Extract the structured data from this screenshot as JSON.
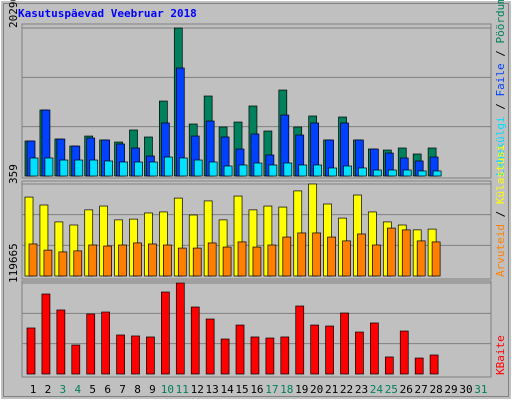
{
  "title": "Kasutuspäevad Veebruar 2018",
  "legend_separator": " / ",
  "chart_data": [
    {
      "type": "bar",
      "ylim": [
        0,
        20296
      ],
      "yticks": [
        20296
      ],
      "series": [
        {
          "name": "Pöördumisi",
          "color": "#00805c",
          "values": [
            4800,
            9050,
            5070,
            4110,
            5480,
            4940,
            4660,
            6310,
            5350,
            10280,
            20296,
            7130,
            10970,
            6720,
            7400,
            9600,
            6170,
            11790,
            6720,
            8230,
            4940,
            8090,
            4940,
            3700,
            3560,
            3840,
            3020,
            3840,
            null,
            null,
            null
          ]
        },
        {
          "name": "Faile",
          "color": "#0040ff",
          "values": [
            4800,
            9050,
            5070,
            4110,
            5210,
            4940,
            4390,
            3840,
            2740,
            7270,
            14810,
            5480,
            7540,
            5350,
            3700,
            5760,
            2880,
            8360,
            5620,
            7270,
            4940,
            7270,
            4940,
            3700,
            3150,
            2470,
            2060,
            2600,
            null,
            null,
            null
          ]
        },
        {
          "name": "Lehekülgi",
          "color": "#00e0ff",
          "values": [
            2470,
            2470,
            2190,
            2190,
            2190,
            2060,
            1920,
            1920,
            1920,
            2600,
            2470,
            2190,
            1920,
            1370,
            1510,
            1780,
            1510,
            1780,
            1510,
            1510,
            1100,
            1370,
            1100,
            820,
            820,
            820,
            690,
            690,
            null,
            null,
            null
          ]
        }
      ]
    },
    {
      "type": "bar",
      "ylim": [
        0,
        359
      ],
      "yticks": [
        359
      ],
      "series": [
        {
          "name": "Külastusi",
          "color": "#ffff00",
          "values": [
            308,
            277,
            211,
            199,
            258,
            273,
            219,
            222,
            246,
            250,
            304,
            238,
            293,
            219,
            312,
            258,
            273,
            269,
            332,
            359,
            281,
            226,
            316,
            250,
            211,
            199,
            180,
            183,
            null,
            null,
            null
          ]
        },
        {
          "name": "Arvuteid",
          "color": "#ff8000",
          "values": [
            125,
            101,
            94,
            98,
            121,
            117,
            121,
            129,
            125,
            121,
            109,
            109,
            129,
            113,
            133,
            113,
            121,
            152,
            168,
            168,
            152,
            137,
            164,
            121,
            187,
            180,
            137,
            133,
            null,
            null,
            null
          ]
        }
      ]
    },
    {
      "type": "bar",
      "ylim": [
        0,
        119665
      ],
      "yticks": [
        119665
      ],
      "categories": [
        "1",
        "2",
        "3",
        "4",
        "5",
        "6",
        "7",
        "8",
        "9",
        "10",
        "11",
        "12",
        "13",
        "14",
        "15",
        "16",
        "17",
        "18",
        "19",
        "20",
        "21",
        "22",
        "23",
        "24",
        "25",
        "26",
        "27",
        "28",
        "29",
        "30",
        "31"
      ],
      "category_colors": [
        "#000000",
        "#000000",
        "#00805c",
        "#00805c",
        "#000000",
        "#000000",
        "#000000",
        "#000000",
        "#000000",
        "#00805c",
        "#00805c",
        "#000000",
        "#000000",
        "#000000",
        "#000000",
        "#000000",
        "#00805c",
        "#00805c",
        "#000000",
        "#000000",
        "#000000",
        "#000000",
        "#000000",
        "#00805c",
        "#00805c",
        "#000000",
        "#000000",
        "#000000",
        "#000000",
        "#000000",
        "#00805c"
      ],
      "series": [
        {
          "name": "KBaite",
          "color": "#ff0000",
          "values": [
            60500,
            105200,
            84200,
            38100,
            78900,
            81500,
            51300,
            50000,
            48700,
            107800,
            119665,
            88100,
            72300,
            46000,
            64400,
            48700,
            47300,
            48700,
            89400,
            64400,
            63100,
            80200,
            55200,
            67100,
            22400,
            56500,
            21000,
            25000,
            null,
            null,
            null
          ]
        }
      ]
    }
  ]
}
